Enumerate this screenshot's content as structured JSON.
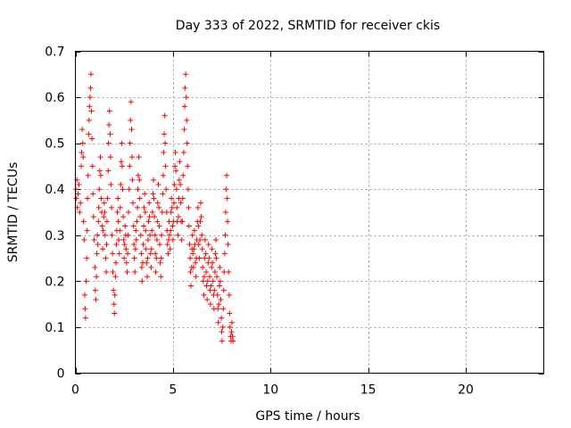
{
  "chart_data": {
    "type": "scatter",
    "title": "Day 333 of 2022, SRMTID for receiver ckis",
    "xlabel": "GPS time / hours",
    "ylabel": "SRMTID / TECUs",
    "xlim": [
      0,
      24
    ],
    "ylim": [
      0,
      0.7
    ],
    "xticks": [
      0,
      5,
      10,
      15,
      20
    ],
    "xtick_labels": [
      "0",
      "5",
      "10",
      "15",
      "20"
    ],
    "yticks": [
      0,
      0.1,
      0.2,
      0.3,
      0.4,
      0.5,
      0.6,
      0.7
    ],
    "ytick_labels": [
      "0",
      "0.1",
      "0.2",
      "0.3",
      "0.4",
      "0.5",
      "0.6",
      "0.7"
    ],
    "grid": true,
    "marker": "+",
    "marker_color": "#ff0000",
    "series": [
      {
        "name": "SRMTID",
        "points": [
          [
            0.02,
            0.4
          ],
          [
            0.05,
            0.38
          ],
          [
            0.08,
            0.42
          ],
          [
            0.1,
            0.36
          ],
          [
            0.14,
            0.39
          ],
          [
            0.18,
            0.41
          ],
          [
            0.22,
            0.35
          ],
          [
            0.26,
            0.37
          ],
          [
            0.3,
            0.45
          ],
          [
            0.32,
            0.48
          ],
          [
            0.35,
            0.53
          ],
          [
            0.38,
            0.5
          ],
          [
            0.4,
            0.47
          ],
          [
            0.42,
            0.33
          ],
          [
            0.45,
            0.29
          ],
          [
            0.48,
            0.17
          ],
          [
            0.5,
            0.14
          ],
          [
            0.52,
            0.12
          ],
          [
            0.55,
            0.2
          ],
          [
            0.58,
            0.25
          ],
          [
            0.6,
            0.31
          ],
          [
            0.62,
            0.38
          ],
          [
            0.65,
            0.43
          ],
          [
            0.68,
            0.52
          ],
          [
            0.7,
            0.55
          ],
          [
            0.72,
            0.58
          ],
          [
            0.75,
            0.6
          ],
          [
            0.78,
            0.62
          ],
          [
            0.8,
            0.65
          ],
          [
            0.82,
            0.57
          ],
          [
            0.85,
            0.51
          ],
          [
            0.88,
            0.45
          ],
          [
            0.9,
            0.39
          ],
          [
            0.93,
            0.34
          ],
          [
            0.96,
            0.29
          ],
          [
            1.0,
            0.23
          ],
          [
            1.02,
            0.18
          ],
          [
            1.05,
            0.16
          ],
          [
            1.08,
            0.21
          ],
          [
            1.1,
            0.26
          ],
          [
            1.12,
            0.3
          ],
          [
            1.15,
            0.28
          ],
          [
            1.18,
            0.33
          ],
          [
            1.2,
            0.36
          ],
          [
            1.22,
            0.4
          ],
          [
            1.25,
            0.44
          ],
          [
            1.28,
            0.47
          ],
          [
            1.3,
            0.43
          ],
          [
            1.32,
            0.38
          ],
          [
            1.35,
            0.35
          ],
          [
            1.38,
            0.32
          ],
          [
            1.4,
            0.27
          ],
          [
            1.42,
            0.31
          ],
          [
            1.45,
            0.34
          ],
          [
            1.48,
            0.37
          ],
          [
            1.5,
            0.35
          ],
          [
            1.52,
            0.3
          ],
          [
            1.55,
            0.25
          ],
          [
            1.58,
            0.22
          ],
          [
            1.6,
            0.28
          ],
          [
            1.62,
            0.33
          ],
          [
            1.65,
            0.38
          ],
          [
            1.68,
            0.44
          ],
          [
            1.7,
            0.5
          ],
          [
            1.72,
            0.54
          ],
          [
            1.75,
            0.57
          ],
          [
            1.78,
            0.52
          ],
          [
            1.8,
            0.47
          ],
          [
            1.82,
            0.41
          ],
          [
            1.85,
            0.36
          ],
          [
            1.88,
            0.3
          ],
          [
            1.9,
            0.26
          ],
          [
            1.92,
            0.22
          ],
          [
            1.95,
            0.18
          ],
          [
            1.98,
            0.15
          ],
          [
            2.0,
            0.13
          ],
          [
            2.02,
            0.17
          ],
          [
            2.05,
            0.21
          ],
          [
            2.08,
            0.24
          ],
          [
            2.1,
            0.28
          ],
          [
            2.12,
            0.31
          ],
          [
            2.15,
            0.35
          ],
          [
            2.18,
            0.38
          ],
          [
            2.2,
            0.33
          ],
          [
            2.22,
            0.29
          ],
          [
            2.25,
            0.26
          ],
          [
            2.28,
            0.31
          ],
          [
            2.3,
            0.36
          ],
          [
            2.32,
            0.41
          ],
          [
            2.35,
            0.46
          ],
          [
            2.38,
            0.5
          ],
          [
            2.4,
            0.45
          ],
          [
            2.42,
            0.4
          ],
          [
            2.45,
            0.34
          ],
          [
            2.48,
            0.29
          ],
          [
            2.5,
            0.25
          ],
          [
            2.52,
            0.28
          ],
          [
            2.55,
            0.32
          ],
          [
            2.58,
            0.3
          ],
          [
            2.6,
            0.27
          ],
          [
            2.62,
            0.24
          ],
          [
            2.65,
            0.22
          ],
          [
            2.68,
            0.26
          ],
          [
            2.7,
            0.3
          ],
          [
            2.72,
            0.35
          ],
          [
            2.75,
            0.4
          ],
          [
            2.78,
            0.45
          ],
          [
            2.8,
            0.5
          ],
          [
            2.82,
            0.55
          ],
          [
            2.85,
            0.59
          ],
          [
            2.88,
            0.53
          ],
          [
            2.9,
            0.47
          ],
          [
            2.92,
            0.42
          ],
          [
            2.95,
            0.37
          ],
          [
            2.98,
            0.32
          ],
          [
            3.0,
            0.28
          ],
          [
            3.02,
            0.25
          ],
          [
            3.05,
            0.22
          ],
          [
            3.08,
            0.27
          ],
          [
            3.1,
            0.31
          ],
          [
            3.12,
            0.29
          ],
          [
            3.15,
            0.33
          ],
          [
            3.18,
            0.36
          ],
          [
            3.2,
            0.4
          ],
          [
            3.22,
            0.43
          ],
          [
            3.25,
            0.47
          ],
          [
            3.28,
            0.42
          ],
          [
            3.3,
            0.38
          ],
          [
            3.32,
            0.34
          ],
          [
            3.35,
            0.3
          ],
          [
            3.38,
            0.26
          ],
          [
            3.4,
            0.23
          ],
          [
            3.42,
            0.2
          ],
          [
            3.45,
            0.24
          ],
          [
            3.48,
            0.28
          ],
          [
            3.5,
            0.32
          ],
          [
            3.52,
            0.36
          ],
          [
            3.55,
            0.39
          ],
          [
            3.58,
            0.35
          ],
          [
            3.6,
            0.31
          ],
          [
            3.62,
            0.27
          ],
          [
            3.65,
            0.24
          ],
          [
            3.68,
            0.21
          ],
          [
            3.7,
            0.25
          ],
          [
            3.72,
            0.29
          ],
          [
            3.75,
            0.33
          ],
          [
            3.78,
            0.37
          ],
          [
            3.8,
            0.34
          ],
          [
            3.82,
            0.3
          ],
          [
            3.85,
            0.26
          ],
          [
            3.88,
            0.23
          ],
          [
            3.9,
            0.27
          ],
          [
            3.92,
            0.31
          ],
          [
            3.95,
            0.35
          ],
          [
            3.98,
            0.39
          ],
          [
            4.0,
            0.42
          ],
          [
            4.02,
            0.38
          ],
          [
            4.05,
            0.34
          ],
          [
            4.08,
            0.3
          ],
          [
            4.1,
            0.26
          ],
          [
            4.12,
            0.22
          ],
          [
            4.15,
            0.25
          ],
          [
            4.18,
            0.29
          ],
          [
            4.2,
            0.33
          ],
          [
            4.22,
            0.37
          ],
          [
            4.25,
            0.41
          ],
          [
            4.28,
            0.36
          ],
          [
            4.3,
            0.32
          ],
          [
            4.32,
            0.28
          ],
          [
            4.35,
            0.24
          ],
          [
            4.38,
            0.21
          ],
          [
            4.4,
            0.25
          ],
          [
            4.42,
            0.3
          ],
          [
            4.45,
            0.35
          ],
          [
            4.48,
            0.39
          ],
          [
            4.5,
            0.43
          ],
          [
            4.52,
            0.48
          ],
          [
            4.55,
            0.52
          ],
          [
            4.58,
            0.56
          ],
          [
            4.6,
            0.5
          ],
          [
            4.62,
            0.45
          ],
          [
            4.65,
            0.4
          ],
          [
            4.68,
            0.35
          ],
          [
            4.7,
            0.31
          ],
          [
            4.72,
            0.28
          ],
          [
            4.75,
            0.26
          ],
          [
            4.78,
            0.29
          ],
          [
            4.8,
            0.33
          ],
          [
            4.82,
            0.3
          ],
          [
            4.85,
            0.27
          ],
          [
            4.88,
            0.31
          ],
          [
            4.9,
            0.35
          ],
          [
            4.92,
            0.38
          ],
          [
            4.95,
            0.36
          ],
          [
            4.98,
            0.32
          ],
          [
            5.0,
            0.29
          ],
          [
            5.02,
            0.33
          ],
          [
            5.05,
            0.37
          ],
          [
            5.08,
            0.41
          ],
          [
            5.1,
            0.45
          ],
          [
            5.12,
            0.48
          ],
          [
            5.15,
            0.44
          ],
          [
            5.18,
            0.4
          ],
          [
            5.2,
            0.36
          ],
          [
            5.22,
            0.33
          ],
          [
            5.25,
            0.3
          ],
          [
            5.28,
            0.34
          ],
          [
            5.3,
            0.38
          ],
          [
            5.32,
            0.42
          ],
          [
            5.35,
            0.46
          ],
          [
            5.38,
            0.41
          ],
          [
            5.4,
            0.37
          ],
          [
            5.42,
            0.33
          ],
          [
            5.45,
            0.29
          ],
          [
            5.48,
            0.33
          ],
          [
            5.5,
            0.38
          ],
          [
            5.52,
            0.43
          ],
          [
            5.55,
            0.48
          ],
          [
            5.58,
            0.53
          ],
          [
            5.6,
            0.58
          ],
          [
            5.62,
            0.62
          ],
          [
            5.65,
            0.65
          ],
          [
            5.68,
            0.6
          ],
          [
            5.7,
            0.55
          ],
          [
            5.72,
            0.5
          ],
          [
            5.75,
            0.45
          ],
          [
            5.78,
            0.4
          ],
          [
            5.8,
            0.36
          ],
          [
            5.82,
            0.32
          ],
          [
            5.85,
            0.28
          ],
          [
            5.88,
            0.25
          ],
          [
            5.9,
            0.22
          ],
          [
            5.92,
            0.19
          ],
          [
            5.95,
            0.23
          ],
          [
            5.98,
            0.27
          ],
          [
            6.0,
            0.3
          ],
          [
            6.02,
            0.26
          ],
          [
            6.05,
            0.23
          ],
          [
            6.08,
            0.27
          ],
          [
            6.1,
            0.31
          ],
          [
            6.12,
            0.28
          ],
          [
            6.15,
            0.24
          ],
          [
            6.18,
            0.21
          ],
          [
            6.2,
            0.25
          ],
          [
            6.22,
            0.29
          ],
          [
            6.25,
            0.33
          ],
          [
            6.28,
            0.36
          ],
          [
            6.3,
            0.32
          ],
          [
            6.32,
            0.28
          ],
          [
            6.35,
            0.25
          ],
          [
            6.38,
            0.29
          ],
          [
            6.4,
            0.33
          ],
          [
            6.42,
            0.37
          ],
          [
            6.45,
            0.34
          ],
          [
            6.48,
            0.3
          ],
          [
            6.5,
            0.27
          ],
          [
            6.52,
            0.23
          ],
          [
            6.55,
            0.2
          ],
          [
            6.58,
            0.17
          ],
          [
            6.6,
            0.21
          ],
          [
            6.62,
            0.25
          ],
          [
            6.65,
            0.29
          ],
          [
            6.68,
            0.26
          ],
          [
            6.7,
            0.22
          ],
          [
            6.72,
            0.19
          ],
          [
            6.75,
            0.16
          ],
          [
            6.78,
            0.2
          ],
          [
            6.8,
            0.24
          ],
          [
            6.82,
            0.28
          ],
          [
            6.85,
            0.25
          ],
          [
            6.88,
            0.21
          ],
          [
            6.9,
            0.18
          ],
          [
            6.92,
            0.15
          ],
          [
            6.95,
            0.19
          ],
          [
            6.98,
            0.23
          ],
          [
            7.0,
            0.27
          ],
          [
            7.02,
            0.24
          ],
          [
            7.05,
            0.2
          ],
          [
            7.08,
            0.17
          ],
          [
            7.1,
            0.14
          ],
          [
            7.12,
            0.18
          ],
          [
            7.15,
            0.22
          ],
          [
            7.18,
            0.26
          ],
          [
            7.2,
            0.29
          ],
          [
            7.22,
            0.25
          ],
          [
            7.25,
            0.21
          ],
          [
            7.28,
            0.17
          ],
          [
            7.3,
            0.14
          ],
          [
            7.32,
            0.11
          ],
          [
            7.35,
            0.15
          ],
          [
            7.38,
            0.19
          ],
          [
            7.4,
            0.23
          ],
          [
            7.42,
            0.2
          ],
          [
            7.45,
            0.16
          ],
          [
            7.48,
            0.12
          ],
          [
            7.5,
            0.09
          ],
          [
            7.52,
            0.07
          ],
          [
            7.55,
            0.1
          ],
          [
            7.58,
            0.14
          ],
          [
            7.6,
            0.18
          ],
          [
            7.62,
            0.22
          ],
          [
            7.65,
            0.26
          ],
          [
            7.68,
            0.3
          ],
          [
            7.7,
            0.35
          ],
          [
            7.72,
            0.4
          ],
          [
            7.75,
            0.43
          ],
          [
            7.78,
            0.38
          ],
          [
            7.8,
            0.33
          ],
          [
            7.82,
            0.28
          ],
          [
            7.85,
            0.22
          ],
          [
            7.88,
            0.17
          ],
          [
            7.9,
            0.13
          ],
          [
            7.92,
            0.1
          ],
          [
            7.95,
            0.08
          ],
          [
            7.98,
            0.07
          ],
          [
            8.0,
            0.09
          ],
          [
            8.02,
            0.11
          ],
          [
            8.05,
            0.08
          ],
          [
            8.08,
            0.07
          ]
        ]
      }
    ]
  }
}
